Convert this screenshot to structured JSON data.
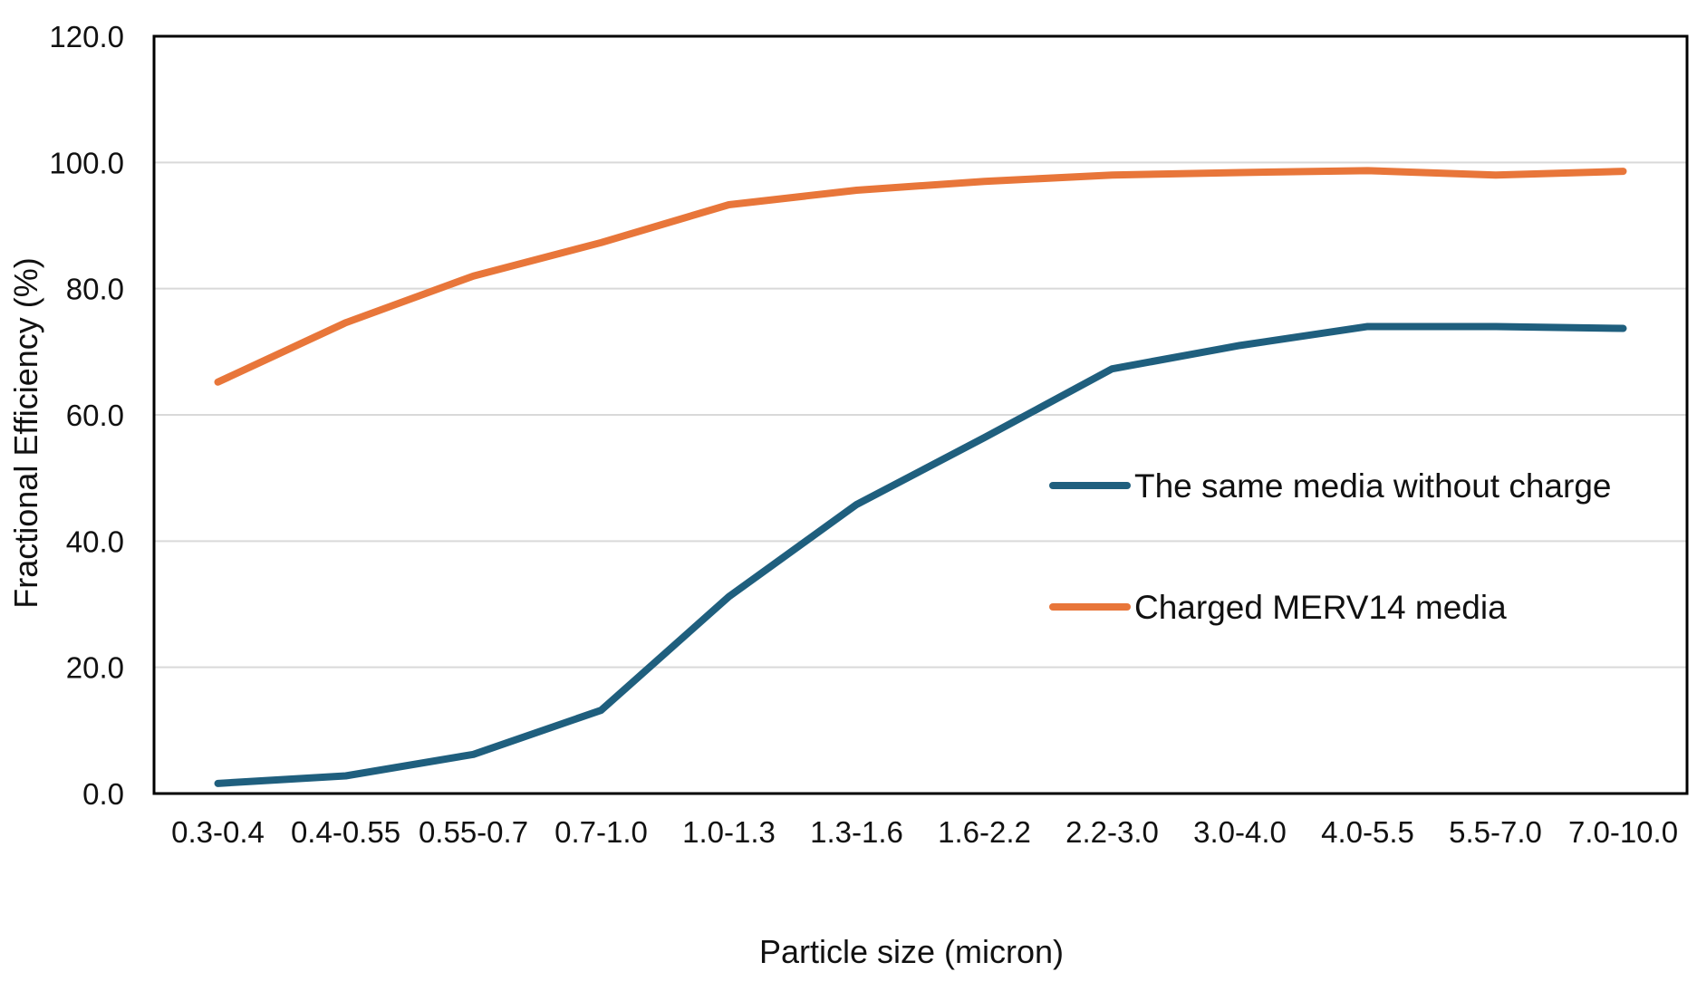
{
  "chart_data": {
    "type": "line",
    "title": "",
    "xlabel": "Particle size (micron)",
    "ylabel": "Fractional Efficiency (%)",
    "ylim": [
      0,
      120
    ],
    "yticks": [
      "0.0",
      "20.0",
      "40.0",
      "60.0",
      "80.0",
      "100.0",
      "120.0"
    ],
    "ytick_values": [
      0,
      20,
      40,
      60,
      80,
      100,
      120
    ],
    "categories": [
      "0.3-0.4",
      "0.4-0.55",
      "0.55-0.7",
      "0.7-1.0",
      "1.0-1.3",
      "1.3-1.6",
      "1.6-2.2",
      "2.2-3.0",
      "3.0-4.0",
      "4.0-5.5",
      "5.5-7.0",
      "7.0-10.0"
    ],
    "grid": true,
    "legend_position": "center-right",
    "series": [
      {
        "name": "The same media without charge",
        "color": "#1f5f7e",
        "values": [
          1.6,
          2.8,
          6.2,
          13.2,
          31.2,
          45.8,
          56.4,
          67.3,
          71.0,
          74.0,
          74.0,
          73.7
        ]
      },
      {
        "name": "Charged MERV14 media",
        "color": "#e8763a",
        "values": [
          65.2,
          74.6,
          82.0,
          87.3,
          93.3,
          95.6,
          97.0,
          98.0,
          98.4,
          98.7,
          98.0,
          98.6
        ]
      }
    ]
  }
}
